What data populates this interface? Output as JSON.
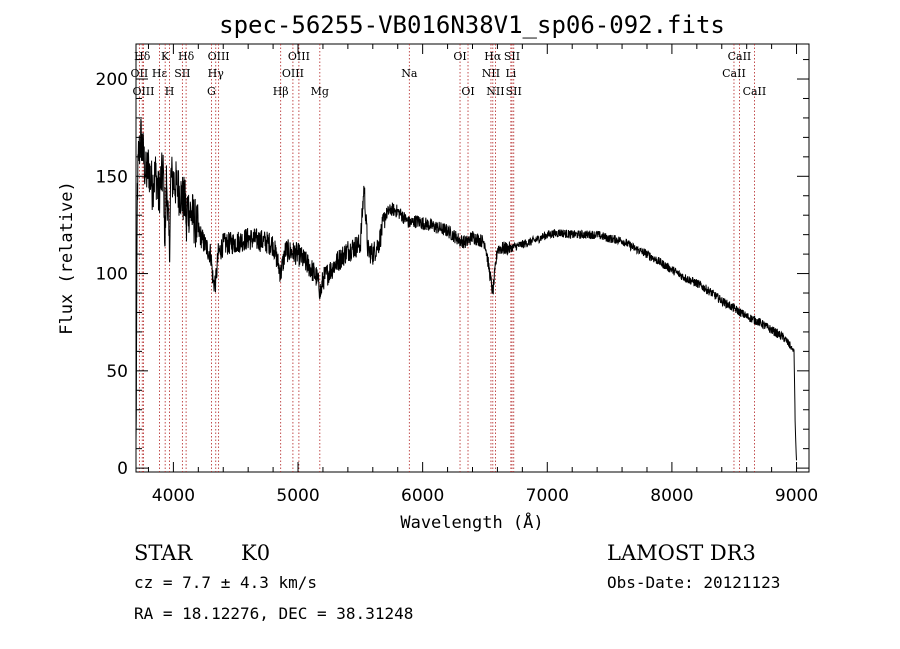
{
  "chart_data": {
    "type": "line",
    "title": "spec-56255-VB016N38V1_sp06-092.fits",
    "xlabel": "Wavelength (Å)",
    "ylabel": "Flux (relative)",
    "xlim": [
      3700,
      9100
    ],
    "ylim": [
      -2,
      218
    ],
    "x_ticks": [
      4000,
      5000,
      6000,
      7000,
      8000,
      9000
    ],
    "y_ticks": [
      0,
      50,
      100,
      150,
      200
    ],
    "grid": false,
    "spectrum_anchors": [
      [
        3700,
        10
      ],
      [
        3705,
        60
      ],
      [
        3710,
        140
      ],
      [
        3720,
        160
      ],
      [
        3740,
        170
      ],
      [
        3760,
        160
      ],
      [
        3780,
        150
      ],
      [
        3800,
        155
      ],
      [
        3830,
        145
      ],
      [
        3860,
        152
      ],
      [
        3880,
        140
      ],
      [
        3900,
        148
      ],
      [
        3920,
        152
      ],
      [
        3933,
        115
      ],
      [
        3945,
        150
      ],
      [
        3968,
        110
      ],
      [
        3980,
        150
      ],
      [
        4000,
        148
      ],
      [
        4050,
        142
      ],
      [
        4100,
        135
      ],
      [
        4102,
        115
      ],
      [
        4110,
        135
      ],
      [
        4150,
        130
      ],
      [
        4200,
        122
      ],
      [
        4250,
        115
      ],
      [
        4300,
        110
      ],
      [
        4320,
        95
      ],
      [
        4340,
        96
      ],
      [
        4360,
        110
      ],
      [
        4400,
        115
      ],
      [
        4500,
        116
      ],
      [
        4600,
        118
      ],
      [
        4700,
        117
      ],
      [
        4800,
        115
      ],
      [
        4861,
        100
      ],
      [
        4900,
        112
      ],
      [
        5000,
        110
      ],
      [
        5100,
        103
      ],
      [
        5150,
        98
      ],
      [
        5183,
        90
      ],
      [
        5200,
        97
      ],
      [
        5300,
        105
      ],
      [
        5400,
        112
      ],
      [
        5500,
        115
      ],
      [
        5530,
        145
      ],
      [
        5560,
        112
      ],
      [
        5600,
        110
      ],
      [
        5650,
        116
      ],
      [
        5700,
        130
      ],
      [
        5750,
        133
      ],
      [
        5800,
        132
      ],
      [
        5893,
        126
      ],
      [
        5950,
        127
      ],
      [
        6000,
        126
      ],
      [
        6100,
        124
      ],
      [
        6200,
        122
      ],
      [
        6300,
        117
      ],
      [
        6350,
        116
      ],
      [
        6400,
        119
      ],
      [
        6500,
        116
      ],
      [
        6563,
        90
      ],
      [
        6600,
        113
      ],
      [
        6700,
        113
      ],
      [
        6800,
        115
      ],
      [
        6900,
        117
      ],
      [
        7000,
        120
      ],
      [
        7100,
        121
      ],
      [
        7200,
        120
      ],
      [
        7300,
        120
      ],
      [
        7400,
        120
      ],
      [
        7500,
        118
      ],
      [
        7600,
        117
      ],
      [
        7700,
        113
      ],
      [
        7800,
        110
      ],
      [
        7900,
        106
      ],
      [
        8000,
        102
      ],
      [
        8100,
        98
      ],
      [
        8200,
        95
      ],
      [
        8300,
        91
      ],
      [
        8400,
        86
      ],
      [
        8500,
        82
      ],
      [
        8600,
        78
      ],
      [
        8700,
        75
      ],
      [
        8800,
        71
      ],
      [
        8900,
        67
      ],
      [
        8980,
        60
      ],
      [
        8990,
        20
      ],
      [
        9000,
        3
      ]
    ],
    "line_marks": [
      {
        "label": "Hδ",
        "wavelength": 3750,
        "row": 0
      },
      {
        "label": "OII",
        "wavelength": 3727,
        "row": 1
      },
      {
        "label": "OIII",
        "wavelength": 3760,
        "row": 2
      },
      {
        "label": "K",
        "wavelength": 3934,
        "row": 0
      },
      {
        "label": "Hε",
        "wavelength": 3889,
        "row": 1
      },
      {
        "label": "H",
        "wavelength": 3969,
        "row": 2
      },
      {
        "label": "Hδ",
        "wavelength": 4102,
        "row": 0
      },
      {
        "label": "SII",
        "wavelength": 4072,
        "row": 1
      },
      {
        "label": "OIII",
        "wavelength": 4363,
        "row": 0
      },
      {
        "label": "Hγ",
        "wavelength": 4340,
        "row": 1
      },
      {
        "label": "G",
        "wavelength": 4305,
        "row": 2
      },
      {
        "label": "Hβ",
        "wavelength": 4861,
        "row": 2
      },
      {
        "label": "OIII",
        "wavelength": 5007,
        "row": 0
      },
      {
        "label": "OIII",
        "wavelength": 4959,
        "row": 1
      },
      {
        "label": "Mg",
        "wavelength": 5175,
        "row": 2
      },
      {
        "label": "Na",
        "wavelength": 5893,
        "row": 1
      },
      {
        "label": "OI",
        "wavelength": 6300,
        "row": 0
      },
      {
        "label": "OI",
        "wavelength": 6364,
        "row": 2
      },
      {
        "label": "Hα",
        "wavelength": 6563,
        "row": 0
      },
      {
        "label": "NII",
        "wavelength": 6548,
        "row": 1
      },
      {
        "label": "NII",
        "wavelength": 6584,
        "row": 2
      },
      {
        "label": "SII",
        "wavelength": 6717,
        "row": 0
      },
      {
        "label": "Li",
        "wavelength": 6708,
        "row": 1
      },
      {
        "label": "SII",
        "wavelength": 6731,
        "row": 2
      },
      {
        "label": "CaII",
        "wavelength": 8542,
        "row": 0
      },
      {
        "label": "CaII",
        "wavelength": 8498,
        "row": 1
      },
      {
        "label": "CaII",
        "wavelength": 8662,
        "row": 2
      }
    ]
  },
  "footer": {
    "class_label": "STAR",
    "subclass": "K0",
    "cz": "cz = 7.7 ± 4.3 km/s",
    "coords": "RA =  18.12276, DEC =  38.31248",
    "survey": "LAMOST DR3",
    "obs_date": "Obs-Date: 20121123"
  },
  "colors": {
    "spectrum": "#000000",
    "line_marker": "#b22222",
    "axis": "#000000"
  }
}
